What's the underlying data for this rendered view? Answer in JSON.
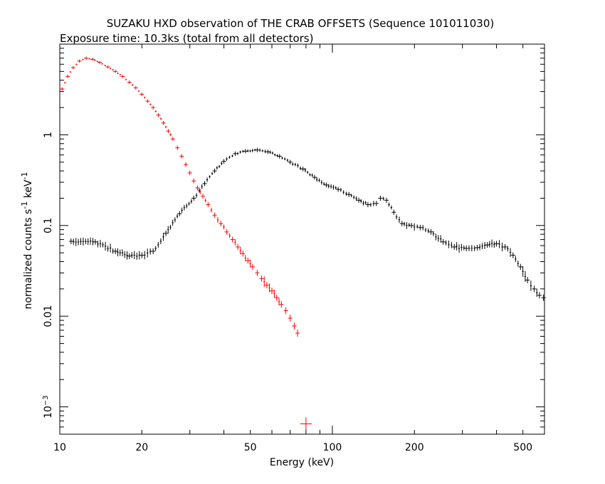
{
  "chart_data": {
    "type": "scatter",
    "title": "SUZAKU HXD observation of THE CRAB OFFSETS (Sequence 101011030)",
    "subtitle": "Exposure time: 10.3ks (total from all detectors)",
    "xlabel": "Energy (keV)",
    "ylabel": {
      "main": "normalized counts s",
      "sup1": "-1",
      "mid": " keV",
      "sup2": "-1"
    },
    "xscale": "log",
    "yscale": "log",
    "xlim": [
      10,
      600
    ],
    "ylim": [
      0.0005,
      10
    ],
    "grid": false,
    "x_ticks": [
      {
        "value": 10,
        "label": "10"
      },
      {
        "value": 20,
        "label": "20"
      },
      {
        "value": 50,
        "label": "50"
      },
      {
        "value": 100,
        "label": "100"
      },
      {
        "value": 200,
        "label": "200"
      },
      {
        "value": 500,
        "label": "500"
      }
    ],
    "y_ticks": [
      {
        "value": 1,
        "label": "1"
      },
      {
        "value": 0.1,
        "label": "0.1"
      },
      {
        "value": 0.01,
        "label": "0.01"
      },
      {
        "value": 0.001,
        "label": "10",
        "sup": "−3"
      }
    ],
    "series": [
      {
        "color": "#ff0000",
        "points": [
          [
            10.2,
            3.2
          ],
          [
            10.7,
            4.4
          ],
          [
            11.2,
            5.5
          ],
          [
            11.8,
            6.5
          ],
          [
            12.5,
            7.0
          ],
          [
            13.2,
            6.8
          ],
          [
            14.0,
            6.3
          ],
          [
            15.0,
            5.6
          ],
          [
            16.0,
            5.0
          ],
          [
            17.0,
            4.4
          ],
          [
            18.0,
            3.8
          ],
          [
            19.0,
            3.3
          ],
          [
            20.0,
            2.8
          ],
          [
            21.0,
            2.35
          ],
          [
            22.0,
            2.0
          ],
          [
            23.0,
            1.65
          ],
          [
            24.0,
            1.35
          ],
          [
            25.0,
            1.1
          ],
          [
            26.0,
            0.9
          ],
          [
            27.0,
            0.72
          ],
          [
            28.0,
            0.58
          ],
          [
            29.0,
            0.47
          ],
          [
            30.0,
            0.38
          ],
          [
            31.0,
            0.31
          ],
          [
            32.0,
            0.26
          ],
          [
            33.5,
            0.21
          ],
          [
            35.0,
            0.17
          ],
          [
            37.0,
            0.13
          ],
          [
            39.0,
            0.105
          ],
          [
            41.0,
            0.085
          ],
          [
            43.0,
            0.07
          ],
          [
            45.0,
            0.058
          ],
          [
            47.0,
            0.049
          ],
          [
            49.0,
            0.041
          ],
          [
            51.0,
            0.035
          ],
          [
            53.0,
            0.03
          ],
          [
            55.0,
            0.026
          ],
          [
            57.5,
            0.022
          ],
          [
            60.0,
            0.019
          ],
          [
            62.5,
            0.016
          ],
          [
            65.0,
            0.0135
          ],
          [
            67.5,
            0.0115
          ],
          [
            70.0,
            0.0095
          ],
          [
            72.5,
            0.0078
          ],
          [
            74.5,
            0.0065
          ],
          [
            80.0,
            0.00065
          ]
        ]
      },
      {
        "color": "#000000",
        "points": [
          [
            11.0,
            0.067
          ],
          [
            13.5,
            0.066
          ],
          [
            16.0,
            0.052
          ],
          [
            18.0,
            0.046
          ],
          [
            20.0,
            0.047
          ],
          [
            22.0,
            0.052
          ],
          [
            24.5,
            0.082
          ],
          [
            27.5,
            0.135
          ],
          [
            31.0,
            0.2
          ],
          [
            34.0,
            0.29
          ],
          [
            37.0,
            0.4
          ],
          [
            40.0,
            0.51
          ],
          [
            44.0,
            0.62
          ],
          [
            48.0,
            0.66
          ],
          [
            53.0,
            0.68
          ],
          [
            58.0,
            0.65
          ],
          [
            64.0,
            0.58
          ],
          [
            70.0,
            0.5
          ],
          [
            78.0,
            0.42
          ],
          [
            86.0,
            0.34
          ],
          [
            95.0,
            0.28
          ],
          [
            105.0,
            0.25
          ],
          [
            115.0,
            0.22
          ],
          [
            125.0,
            0.19
          ],
          [
            135.0,
            0.17
          ],
          [
            145.0,
            0.175
          ],
          [
            150.0,
            0.2
          ],
          [
            158.0,
            0.19
          ],
          [
            168.0,
            0.14
          ],
          [
            180.0,
            0.105
          ],
          [
            195.0,
            0.1
          ],
          [
            210.0,
            0.095
          ],
          [
            230.0,
            0.085
          ],
          [
            255.0,
            0.066
          ],
          [
            280.0,
            0.058
          ],
          [
            310.0,
            0.056
          ],
          [
            340.0,
            0.057
          ],
          [
            370.0,
            0.061
          ],
          [
            400.0,
            0.063
          ],
          [
            430.0,
            0.058
          ],
          [
            460.0,
            0.047
          ],
          [
            490.0,
            0.035
          ],
          [
            520.0,
            0.025
          ],
          [
            550.0,
            0.02
          ],
          [
            575.0,
            0.017
          ],
          [
            595.0,
            0.016
          ]
        ]
      }
    ]
  }
}
